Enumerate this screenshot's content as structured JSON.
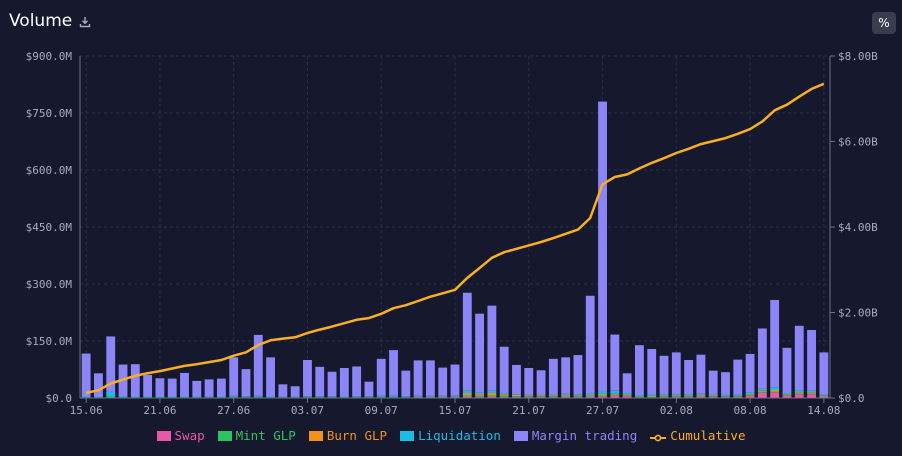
{
  "header": {
    "title": "Volume",
    "percent_toggle_label": "%"
  },
  "colors": {
    "swap": "#e55aa6",
    "mint": "#2bc460",
    "burn": "#f2921b",
    "liquidation": "#1bbde2",
    "margin": "#8b85f7",
    "cumulative": "#f9ae23"
  },
  "chart_data": {
    "type": "bar",
    "title": "Volume",
    "stacked": true,
    "categories": [
      "15.06",
      "16.06",
      "17.06",
      "18.06",
      "19.06",
      "20.06",
      "21.06",
      "22.06",
      "23.06",
      "24.06",
      "25.06",
      "26.06",
      "27.06",
      "28.06",
      "29.06",
      "30.06",
      "01.07",
      "02.07",
      "03.07",
      "04.07",
      "05.07",
      "06.07",
      "07.07",
      "08.07",
      "09.07",
      "10.07",
      "11.07",
      "12.07",
      "13.07",
      "14.07",
      "15.07",
      "16.07",
      "17.07",
      "18.07",
      "19.07",
      "20.07",
      "21.07",
      "22.07",
      "23.07",
      "24.07",
      "25.07",
      "26.07",
      "27.07",
      "28.07",
      "29.07",
      "30.07",
      "31.07",
      "01.08",
      "02.08",
      "03.08",
      "04.08",
      "05.08",
      "06.08",
      "07.08",
      "08.08",
      "09.08",
      "10.08",
      "11.08",
      "12.08",
      "13.08",
      "14.08"
    ],
    "x_tick_labels": [
      "15.06",
      "21.06",
      "27.06",
      "03.07",
      "09.07",
      "15.07",
      "21.07",
      "27.07",
      "02.08",
      "08.08",
      "14.08"
    ],
    "series": [
      {
        "name": "Swap",
        "values": [
          1,
          1,
          1,
          1,
          1,
          1,
          1,
          1,
          1,
          1,
          1,
          1,
          2,
          2,
          2,
          1,
          1,
          1,
          2,
          2,
          2,
          1,
          2,
          2,
          2,
          2,
          2,
          3,
          3,
          3,
          3,
          4,
          3,
          4,
          3,
          3,
          3,
          3,
          3,
          4,
          3,
          4,
          5,
          7,
          5,
          2,
          2,
          3,
          3,
          3,
          4,
          3,
          3,
          3,
          6,
          14,
          15,
          6,
          10,
          10,
          4
        ]
      },
      {
        "name": "Mint GLP",
        "values": [
          1,
          1,
          2,
          1,
          1,
          1,
          1,
          1,
          1,
          1,
          1,
          1,
          1,
          1,
          1,
          1,
          1,
          1,
          1,
          1,
          1,
          1,
          1,
          1,
          1,
          1,
          1,
          1,
          1,
          1,
          1,
          4,
          3,
          3,
          3,
          2,
          2,
          2,
          2,
          2,
          2,
          2,
          3,
          2,
          2,
          2,
          2,
          2,
          2,
          2,
          2,
          2,
          2,
          2,
          2,
          2,
          2,
          2,
          2,
          2,
          2
        ]
      },
      {
        "name": "Burn GLP",
        "values": [
          0,
          0,
          0,
          0,
          0,
          0,
          0,
          0,
          0,
          0,
          0,
          0,
          0,
          0,
          0,
          0,
          0,
          0,
          0,
          0,
          0,
          0,
          0,
          0,
          0,
          0,
          0,
          0,
          0,
          0,
          0,
          5,
          4,
          6,
          4,
          3,
          2,
          2,
          2,
          2,
          2,
          2,
          3,
          2,
          2,
          1,
          2,
          2,
          2,
          2,
          2,
          2,
          1,
          1,
          2,
          3,
          4,
          2,
          3,
          3,
          1
        ]
      },
      {
        "name": "Liquidation",
        "values": [
          2,
          2,
          13,
          3,
          2,
          2,
          2,
          2,
          2,
          2,
          1,
          2,
          3,
          2,
          3,
          2,
          1,
          1,
          2,
          2,
          2,
          2,
          2,
          2,
          3,
          3,
          2,
          2,
          2,
          2,
          2,
          6,
          4,
          6,
          3,
          2,
          2,
          2,
          2,
          3,
          3,
          4,
          6,
          8,
          4,
          2,
          3,
          3,
          3,
          3,
          3,
          2,
          2,
          3,
          4,
          5,
          7,
          3,
          5,
          4,
          2
        ]
      },
      {
        "name": "Margin trading",
        "values": [
          113,
          61,
          146,
          83,
          85,
          57,
          48,
          47,
          62,
          41,
          46,
          47,
          101,
          71,
          160,
          103,
          33,
          28,
          95,
          77,
          64,
          75,
          78,
          38,
          97,
          120,
          67,
          93,
          93,
          74,
          82,
          258,
          208,
          224,
          122,
          77,
          70,
          64,
          94,
          96,
          103,
          257,
          763,
          148,
          52,
          132,
          120,
          101,
          110,
          90,
          103,
          63,
          60,
          92,
          102,
          159,
          230,
          119,
          170,
          160,
          111
        ]
      },
      {
        "name": "Cumulative",
        "axis": "right",
        "values": [
          0.12,
          0.18,
          0.34,
          0.43,
          0.52,
          0.58,
          0.63,
          0.69,
          0.75,
          0.79,
          0.84,
          0.89,
          0.99,
          1.07,
          1.24,
          1.35,
          1.39,
          1.42,
          1.52,
          1.6,
          1.67,
          1.75,
          1.83,
          1.87,
          1.97,
          2.1,
          2.17,
          2.27,
          2.37,
          2.45,
          2.53,
          2.81,
          3.04,
          3.28,
          3.41,
          3.49,
          3.57,
          3.65,
          3.74,
          3.84,
          3.94,
          4.21,
          5.0,
          5.17,
          5.23,
          5.37,
          5.5,
          5.61,
          5.73,
          5.83,
          5.94,
          6.01,
          6.08,
          6.18,
          6.29,
          6.47,
          6.73,
          6.86,
          7.05,
          7.23,
          7.35
        ]
      }
    ],
    "ylim": [
      0,
      900
    ],
    "y_ticks": [
      "$0.0",
      "$150.0M",
      "$300.0M",
      "$450.0M",
      "$600.0M",
      "$750.0M",
      "$900.0M"
    ],
    "y2lim": [
      0,
      8
    ],
    "y2_ticks": [
      "$0.0",
      "$2.00B",
      "$4.00B",
      "$6.00B",
      "$8.00B"
    ],
    "ylabel": "",
    "xlabel": "",
    "grid": true,
    "legend_position": "bottom"
  }
}
